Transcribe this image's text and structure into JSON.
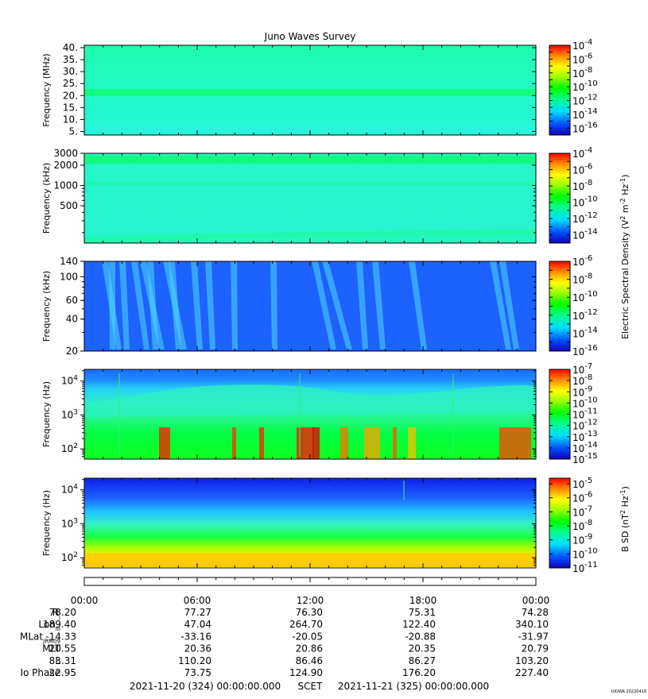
{
  "title": "Juno Waves Survey",
  "chart_data": [
    {
      "type": "heatmap",
      "ylabel": "Frequency (MHz)",
      "ylim": [
        3.5,
        41
      ],
      "yscale": "linear",
      "yticks": [
        {
          "v": 40,
          "label": "40."
        },
        {
          "v": 35,
          "label": "35."
        },
        {
          "v": 30,
          "label": "30."
        },
        {
          "v": 25,
          "label": "25."
        },
        {
          "v": 20,
          "label": "20."
        },
        {
          "v": 15,
          "label": "15."
        },
        {
          "v": 10,
          "label": "10."
        },
        {
          "v": 5,
          "label": "5."
        }
      ],
      "colorbar": {
        "min_exp": -17,
        "max_exp": -4,
        "ticks": [
          -4,
          -6,
          -8,
          -10,
          -12,
          -14,
          -16
        ]
      },
      "features": "uniform background near 1e-12; narrow enhanced band near 21 MHz"
    },
    {
      "type": "heatmap",
      "ylabel": "Frequency (kHz)",
      "ylim": [
        140,
        3000
      ],
      "yscale": "log",
      "yticks": [
        {
          "v": 3000,
          "label": "3000"
        },
        {
          "v": 2000,
          "label": "2000"
        },
        {
          "v": 1000,
          "label": "1000"
        },
        {
          "v": 500,
          "label": "500"
        }
      ],
      "colorbar": {
        "min_exp": -15,
        "max_exp": -4,
        "ticks": [
          -4,
          -6,
          -8,
          -10,
          -12,
          -14
        ]
      },
      "features": "uniform background near 1e-11; enhanced band near 2.3 MHz"
    },
    {
      "type": "heatmap",
      "ylabel": "Frequency (kHz)",
      "ylim": [
        20,
        140
      ],
      "yscale": "log",
      "yticks": [
        {
          "v": 140,
          "label": "140"
        },
        {
          "v": 100,
          "label": "100"
        },
        {
          "v": 60,
          "label": "60"
        },
        {
          "v": 40,
          "label": "40"
        },
        {
          "v": 20,
          "label": "20"
        }
      ],
      "colorbar": {
        "min_exp": -16,
        "max_exp": -6,
        "ticks": [
          -6,
          -8,
          -10,
          -12,
          -14,
          -16
        ]
      },
      "features": "background near 1e-14 with streaky emissions near 01-07 h and 11-18 h and around 22 h"
    },
    {
      "type": "heatmap",
      "ylabel": "Frequency (Hz)",
      "ylim": [
        50,
        22000
      ],
      "yscale": "log",
      "yticks": [
        {
          "v": 10000,
          "base": "10",
          "exp": "4"
        },
        {
          "v": 1000,
          "base": "10",
          "exp": "3"
        },
        {
          "v": 100,
          "base": "10",
          "exp": "2"
        }
      ],
      "colorbar": {
        "min_exp": -15,
        "max_exp": -7,
        "ticks": [
          -7,
          -8,
          -9,
          -10,
          -11,
          -12,
          -13,
          -14,
          -15
        ]
      },
      "features": "blue above 5 kHz, cyan/green below; intense red bursts 100-400 Hz"
    },
    {
      "type": "heatmap",
      "ylabel": "Frequency (Hz)",
      "ylim": [
        50,
        22000
      ],
      "yscale": "log",
      "yticks": [
        {
          "v": 10000,
          "base": "10",
          "exp": "4"
        },
        {
          "v": 1000,
          "base": "10",
          "exp": "3"
        },
        {
          "v": 100,
          "base": "10",
          "exp": "2"
        }
      ],
      "colorbar": {
        "min_exp": -11,
        "max_exp": -4.6,
        "ticks": [
          -5,
          -6,
          -7,
          -8,
          -9,
          -10,
          -11
        ]
      },
      "features": "blue at high frequency grading to yellow below 100 Hz"
    }
  ],
  "colorbar_labels": {
    "electric": "Electric Spectral Density (V",
    "electric_mid": " m",
    "electric_end": " Hz",
    "electric_sup1": "2",
    "electric_sup2": "-2",
    "electric_sup3": "-1",
    "electric_close": ")",
    "magnetic": "B SD (nT",
    "magnetic_end": " Hz",
    "magnetic_sup1": "2",
    "magnetic_sup2": "-1",
    "magnetic_close": ")",
    "tick_base": "10"
  },
  "time_axis": {
    "ticks": [
      "00:00",
      "06:00",
      "12:00",
      "18:00",
      "00:00"
    ]
  },
  "ephemeris": {
    "rows": [
      {
        "label": "R",
        "sub": "j",
        "values": [
          "78.20",
          "77.27",
          "76.30",
          "75.31",
          "74.28"
        ]
      },
      {
        "label": "Lon",
        "sub": "III",
        "values": [
          "189.40",
          "47.04",
          "264.70",
          "122.40",
          "340.10"
        ]
      },
      {
        "label": "MLat",
        "sub": "JRM09",
        "values": [
          "-14.33",
          "-33.16",
          "-20.05",
          "-20.88",
          "-31.97"
        ]
      },
      {
        "label": "MLT",
        "sub": "",
        "values": [
          "20.55",
          "20.36",
          "20.86",
          "20.35",
          "20.79"
        ]
      },
      {
        "label": "L",
        "sub": "",
        "values": [
          "83.31",
          "110.20",
          "86.46",
          "86.27",
          "103.20"
        ]
      },
      {
        "label": "Io Phase",
        "sub": "",
        "values": [
          "22.95",
          "73.75",
          "124.90",
          "176.20",
          "227.40"
        ]
      }
    ]
  },
  "footer": {
    "start": "2021-11-20 (324) 00:00:00.000",
    "mid": "SCET",
    "end": "2021-11-21 (325) 00:00:00.000"
  },
  "version": "UIOWA 20220418"
}
